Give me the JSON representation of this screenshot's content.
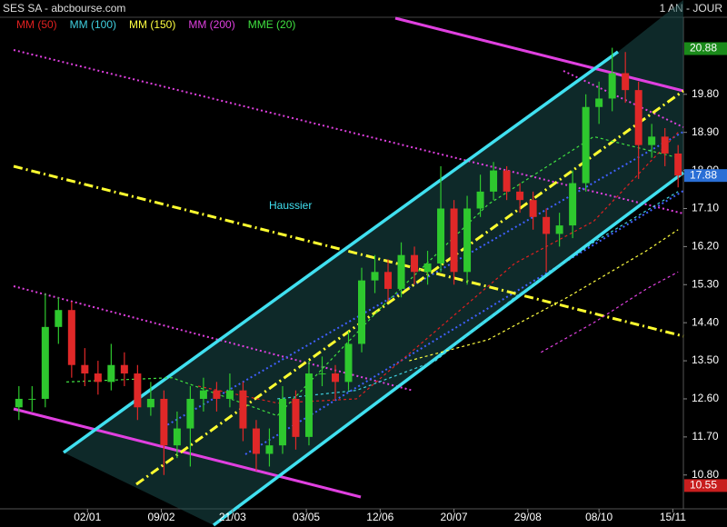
{
  "chart_data": {
    "type": "candlestick",
    "title": "SES SA - abcbourse.com",
    "subtitle": "1 AN - JOUR",
    "annotation": "Haussier",
    "xlim": [
      0,
      254
    ],
    "ylim": [
      10.0,
      21.6
    ],
    "xticks": [
      {
        "value": 28,
        "label": "02/01"
      },
      {
        "value": 56,
        "label": "09/02"
      },
      {
        "value": 83,
        "label": "21/03"
      },
      {
        "value": 111,
        "label": "03/05"
      },
      {
        "value": 139,
        "label": "12/06"
      },
      {
        "value": 167,
        "label": "20/07"
      },
      {
        "value": 195,
        "label": "29/08"
      },
      {
        "value": 222,
        "label": "08/10"
      },
      {
        "value": 250,
        "label": "15/11"
      }
    ],
    "yticks": [
      {
        "value": 10.8,
        "label": "10.80"
      },
      {
        "value": 11.7,
        "label": "11.70"
      },
      {
        "value": 12.6,
        "label": "12.60"
      },
      {
        "value": 13.5,
        "label": "13.50"
      },
      {
        "value": 14.4,
        "label": "14.40"
      },
      {
        "value": 15.3,
        "label": "15.30"
      },
      {
        "value": 16.2,
        "label": "16.20"
      },
      {
        "value": 17.1,
        "label": "17.10"
      },
      {
        "value": 18.0,
        "label": "18.00"
      },
      {
        "value": 18.9,
        "label": "18.90"
      },
      {
        "value": 19.8,
        "label": "19.80"
      }
    ],
    "up_color": "#2ec82e",
    "down_color": "#e02828",
    "x": [
      2,
      7,
      12,
      17,
      22,
      27,
      32,
      37,
      42,
      47,
      52,
      57,
      62,
      67,
      72,
      77,
      82,
      87,
      92,
      97,
      102,
      107,
      112,
      117,
      122,
      127,
      132,
      137,
      142,
      147,
      152,
      157,
      162,
      167,
      172,
      177,
      182,
      187,
      192,
      197,
      202,
      207,
      212,
      217,
      222,
      227,
      232,
      237,
      242,
      247,
      252
    ],
    "open": [
      12.4,
      12.6,
      12.6,
      14.3,
      14.7,
      13.4,
      13.2,
      13.0,
      13.4,
      13.2,
      12.4,
      12.6,
      11.5,
      11.9,
      12.6,
      12.8,
      12.6,
      12.8,
      11.9,
      11.3,
      11.5,
      12.6,
      11.7,
      13.2,
      13.2,
      13.0,
      13.9,
      15.4,
      15.6,
      15.2,
      16.0,
      15.6,
      15.8,
      17.1,
      15.6,
      17.1,
      17.5,
      18.0,
      17.5,
      17.3,
      16.9,
      16.5,
      16.7,
      17.7,
      19.5,
      19.7,
      20.3,
      19.9,
      18.6,
      18.8,
      18.4
    ],
    "high": [
      12.9,
      12.9,
      15.1,
      15.0,
      14.9,
      13.8,
      13.5,
      13.9,
      13.7,
      13.4,
      13.0,
      12.8,
      12.3,
      12.9,
      13.1,
      13.0,
      13.2,
      13.0,
      12.1,
      11.9,
      12.9,
      12.8,
      13.5,
      13.6,
      13.4,
      14.2,
      15.7,
      16.0,
      15.9,
      16.3,
      16.2,
      16.1,
      18.1,
      17.3,
      17.4,
      17.9,
      18.2,
      18.1,
      17.7,
      17.5,
      17.1,
      17.0,
      18.0,
      19.8,
      20.1,
      20.9,
      20.8,
      20.1,
      19.1,
      19.0,
      18.6
    ],
    "low": [
      12.1,
      12.3,
      12.4,
      13.9,
      13.1,
      12.9,
      12.7,
      12.8,
      12.9,
      12.1,
      12.2,
      10.8,
      11.2,
      11.0,
      12.3,
      12.3,
      12.4,
      11.6,
      10.9,
      11.0,
      11.3,
      11.4,
      11.5,
      12.9,
      12.6,
      12.8,
      13.7,
      15.1,
      14.9,
      15.0,
      15.3,
      15.3,
      15.6,
      15.3,
      15.3,
      16.9,
      17.3,
      17.3,
      17.0,
      16.6,
      15.6,
      16.2,
      16.4,
      17.5,
      19.1,
      19.4,
      19.6,
      17.8,
      18.3,
      18.1,
      17.6
    ],
    "close": [
      12.6,
      12.6,
      14.3,
      14.7,
      13.4,
      13.2,
      13.0,
      13.4,
      13.2,
      12.4,
      12.6,
      11.5,
      11.9,
      12.6,
      12.8,
      12.6,
      12.8,
      11.9,
      11.3,
      11.5,
      12.6,
      11.7,
      13.2,
      13.2,
      13.0,
      13.9,
      15.4,
      15.6,
      15.2,
      16.0,
      15.6,
      15.8,
      17.1,
      15.6,
      17.1,
      17.5,
      18.0,
      17.5,
      17.3,
      16.9,
      16.5,
      16.7,
      17.7,
      19.5,
      19.7,
      20.3,
      19.9,
      18.6,
      18.8,
      18.4,
      17.88
    ],
    "series": [
      {
        "name": "MM (50)",
        "color": "#e02020",
        "x": [
          70,
          100,
          130,
          160,
          190,
          220,
          252
        ],
        "values": [
          12.9,
          12.5,
          12.6,
          14.2,
          15.8,
          16.8,
          18.9
        ]
      },
      {
        "name": "MM (100)",
        "color": "#40d0e0",
        "x": [
          100,
          130,
          160,
          190,
          220,
          252
        ],
        "values": [
          12.6,
          12.8,
          13.5,
          15.0,
          16.3,
          17.5
        ]
      },
      {
        "name": "MM (150)",
        "color": "#ffff40",
        "x": [
          150,
          180,
          210,
          240,
          252
        ],
        "values": [
          13.5,
          14.0,
          15.0,
          16.1,
          16.6
        ]
      },
      {
        "name": "MM (200)",
        "color": "#e040e0",
        "x": [
          200,
          220,
          240,
          252
        ],
        "values": [
          13.7,
          14.4,
          15.2,
          15.6
        ]
      },
      {
        "name": "MME (20)",
        "color": "#40e040",
        "x": [
          20,
          60,
          100,
          140,
          180,
          220,
          252
        ],
        "values": [
          13.0,
          13.1,
          12.2,
          14.8,
          17.2,
          18.8,
          18.3
        ]
      }
    ],
    "price_markers": [
      {
        "value": 20.88,
        "color": "#1a8a1a"
      },
      {
        "value": 17.88,
        "color": "#2a6fd6"
      },
      {
        "value": 10.55,
        "color": "#c81e1e"
      }
    ]
  }
}
